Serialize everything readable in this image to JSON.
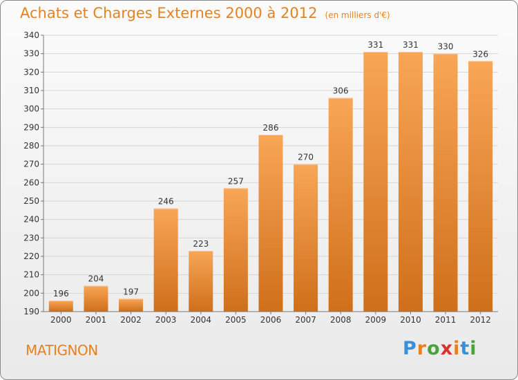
{
  "title": "Achats et Charges Externes 2000 à 2012",
  "unit": "(en milliers d'€)",
  "town": "MATIGNON",
  "logo": {
    "text": "Proxiti",
    "colors": [
      "#3a8fd9",
      "#e8801c",
      "#4aa33a",
      "#d9312b",
      "#e8801c",
      "#3a8fd9",
      "#4aa33a"
    ]
  },
  "colors": {
    "bar_top": "#f8a657",
    "bar_bottom": "#cf6f1a",
    "title": "#e8801c"
  },
  "chart_data": {
    "type": "bar",
    "categories": [
      "2000",
      "2001",
      "2002",
      "2003",
      "2004",
      "2005",
      "2006",
      "2007",
      "2008",
      "2009",
      "2010",
      "2011",
      "2012"
    ],
    "values": [
      196,
      204,
      197,
      246,
      223,
      257,
      286,
      270,
      306,
      331,
      331,
      330,
      326
    ],
    "title": "Achats et Charges Externes 2000 à 2012",
    "subtitle": "(en milliers d'€)",
    "ylim": [
      190,
      340
    ],
    "yticks": [
      190,
      200,
      210,
      220,
      230,
      240,
      250,
      260,
      270,
      280,
      290,
      300,
      310,
      320,
      330,
      340
    ],
    "grid": true
  }
}
